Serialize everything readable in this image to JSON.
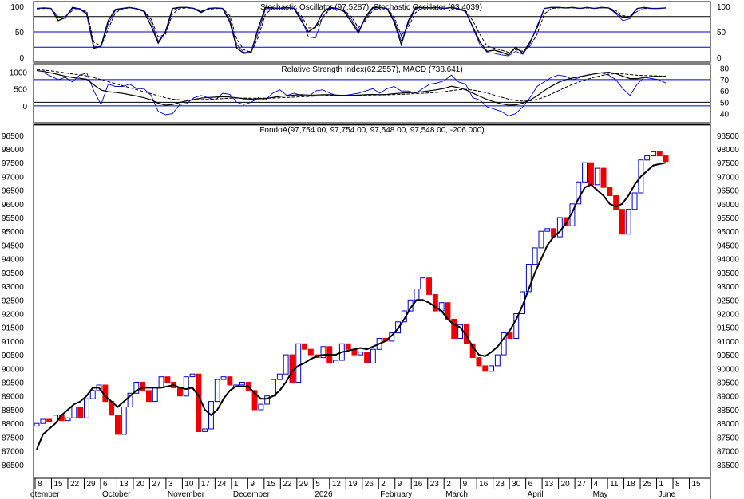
{
  "chart_data": [
    {
      "type": "line",
      "panel": "stochastic",
      "title": "Stochastic Oscillator (97.5287), Stochastic Oscillator (93.4039)",
      "ylim": [
        0,
        100
      ],
      "yticks": [
        0,
        50,
        100
      ],
      "reference_lines": [
        20,
        50,
        80
      ],
      "colors": {
        "k": "#000000",
        "d": "#000000",
        "k2": "#0000cc"
      },
      "series": [
        {
          "values": [
            96,
            97,
            96,
            72,
            78,
            98,
            95,
            85,
            18,
            22,
            72,
            94,
            96,
            98,
            95,
            90,
            62,
            28,
            50,
            96,
            98,
            98,
            96,
            88,
            96,
            97,
            96,
            70,
            18,
            8,
            10,
            58,
            98,
            97,
            96,
            98,
            96,
            72,
            50,
            60,
            88,
            98,
            96,
            90,
            70,
            48,
            80,
            98,
            98,
            96,
            70,
            25,
            72,
            98,
            98,
            97,
            98,
            96,
            98,
            95,
            90,
            60,
            30,
            12,
            14,
            10,
            5,
            20,
            8,
            30,
            58,
            96,
            98,
            98,
            97,
            98,
            96,
            98,
            96,
            98,
            97,
            88,
            78,
            80,
            96,
            98,
            96,
            96,
            97
          ]
        },
        {
          "values": [
            95,
            96,
            96,
            80,
            80,
            92,
            96,
            90,
            30,
            22,
            55,
            88,
            95,
            97,
            96,
            92,
            75,
            40,
            45,
            85,
            96,
            97,
            96,
            92,
            94,
            96,
            96,
            82,
            35,
            15,
            10,
            40,
            85,
            96,
            96,
            97,
            96,
            82,
            58,
            58,
            78,
            94,
            96,
            93,
            80,
            58,
            72,
            92,
            97,
            96,
            80,
            42,
            60,
            88,
            97,
            97,
            97,
            96,
            97,
            96,
            92,
            72,
            45,
            22,
            18,
            14,
            10,
            15,
            12,
            22,
            45,
            85,
            96,
            97,
            97,
            97,
            96,
            97,
            96,
            97,
            97,
            92,
            82,
            80,
            90,
            96,
            96,
            96,
            97
          ]
        },
        {
          "values": [
            96,
            97,
            96,
            78,
            80,
            96,
            96,
            88,
            22,
            20,
            65,
            92,
            96,
            98,
            96,
            92,
            70,
            32,
            48,
            92,
            98,
            98,
            96,
            90,
            95,
            97,
            96,
            75,
            25,
            10,
            12,
            48,
            95,
            97,
            96,
            98,
            96,
            78,
            40,
            38,
            80,
            96,
            96,
            92,
            75,
            52,
            76,
            96,
            98,
            96,
            75,
            32,
            66,
            96,
            98,
            97,
            98,
            96,
            98,
            96,
            90,
            58,
            25,
            10,
            8,
            5,
            3,
            12,
            6,
            26,
            62,
            96,
            98,
            98,
            97,
            98,
            96,
            98,
            96,
            98,
            97,
            86,
            72,
            76,
            96,
            98,
            96,
            96,
            97
          ]
        }
      ]
    },
    {
      "type": "line",
      "panel": "rsi_macd",
      "title": "Relative Strength Index(62.2557), MACD (738.641)",
      "left_yticks": [
        0,
        500,
        1000
      ],
      "right_yticks": [
        40,
        50,
        60,
        70,
        80
      ],
      "left_ylim": [
        -500,
        1250
      ],
      "right_ylim": [
        32,
        84
      ],
      "reference_lines_rsi": [
        30,
        50,
        70
      ],
      "reference_line_macd": 0,
      "colors": {
        "rsi": "#0000cc",
        "macd": "#000000",
        "signal": "#000000"
      },
      "series": [
        {
          "name": "RSI",
          "values": [
            76,
            76,
            73,
            70,
            72,
            68,
            74,
            76,
            60,
            48,
            66,
            64,
            64,
            66,
            62,
            62,
            56,
            42,
            39,
            40,
            48,
            49,
            54,
            56,
            54,
            52,
            58,
            57,
            50,
            48,
            50,
            54,
            52,
            58,
            61,
            56,
            58,
            56,
            55,
            60,
            61,
            58,
            56,
            56,
            57,
            58,
            60,
            62,
            58,
            62,
            64,
            60,
            60,
            58,
            62,
            66,
            67,
            69,
            74,
            68,
            66,
            54,
            52,
            46,
            44,
            42,
            38,
            40,
            46,
            54,
            64,
            68,
            72,
            74,
            73,
            70,
            72,
            74,
            75,
            76,
            74,
            70,
            62,
            56,
            66,
            72,
            71,
            70,
            67
          ]
        },
        {
          "name": "MACD",
          "values": [
            1050,
            1020,
            980,
            930,
            880,
            840,
            820,
            790,
            620,
            470,
            420,
            400,
            370,
            330,
            290,
            240,
            180,
            80,
            20,
            40,
            100,
            150,
            190,
            230,
            250,
            260,
            270,
            265,
            240,
            210,
            200,
            210,
            220,
            250,
            280,
            300,
            320,
            330,
            320,
            320,
            330,
            330,
            320,
            310,
            310,
            320,
            330,
            340,
            330,
            340,
            360,
            380,
            390,
            400,
            420,
            450,
            480,
            520,
            580,
            540,
            480,
            380,
            280,
            190,
            120,
            60,
            20,
            30,
            80,
            170,
            300,
            450,
            580,
            700,
            780,
            830,
            870,
            910,
            950,
            980,
            1000,
            960,
            880,
            810,
            810,
            840,
            870,
            880,
            860
          ]
        },
        {
          "name": "Signal",
          "values": [
            1080,
            1060,
            1040,
            1010,
            980,
            950,
            920,
            890,
            840,
            780,
            720,
            660,
            600,
            540,
            480,
            420,
            360,
            300,
            240,
            200,
            180,
            170,
            175,
            185,
            195,
            205,
            215,
            225,
            230,
            230,
            228,
            225,
            225,
            230,
            240,
            250,
            260,
            270,
            280,
            290,
            300,
            305,
            308,
            310,
            312,
            315,
            318,
            322,
            325,
            328,
            335,
            343,
            352,
            362,
            372,
            385,
            400,
            420,
            450,
            480,
            490,
            470,
            430,
            380,
            320,
            260,
            200,
            160,
            140,
            150,
            190,
            260,
            350,
            450,
            550,
            640,
            720,
            790,
            850,
            900,
            940,
            960,
            950,
            930,
            910,
            900,
            895,
            890,
            880
          ]
        }
      ]
    },
    {
      "type": "candlestick",
      "panel": "price",
      "title": "FondoA(97,754.00, 97,754.00, 97,548.00, 97,548.00, -206.000)",
      "ylim": [
        86000,
        98900
      ],
      "yticks": [
        86500,
        87000,
        87500,
        88000,
        88500,
        89000,
        89500,
        90000,
        90500,
        91000,
        91500,
        92000,
        92500,
        93000,
        93500,
        94000,
        94500,
        95000,
        95500,
        96000,
        96500,
        97000,
        97500,
        98000,
        98500
      ],
      "colors": {
        "up": "#0000cc",
        "down": "#ee0000",
        "ma": "#000000"
      },
      "closes": [
        88000,
        88150,
        88050,
        88300,
        88100,
        88200,
        88600,
        88200,
        88900,
        89200,
        89400,
        88800,
        88300,
        87600,
        88600,
        89100,
        89500,
        89200,
        88800,
        89300,
        89700,
        89500,
        89300,
        89000,
        89700,
        89800,
        87700,
        87800,
        88800,
        89600,
        89700,
        89400,
        89400,
        89500,
        89200,
        88500,
        88700,
        89000,
        89600,
        89800,
        90500,
        89500,
        90900,
        90700,
        90500,
        90400,
        90800,
        90200,
        90300,
        90900,
        90700,
        90500,
        90600,
        90200,
        90700,
        91100,
        91000,
        91300,
        91700,
        92100,
        92500,
        92900,
        93300,
        92700,
        92100,
        92400,
        91800,
        91100,
        91600,
        90900,
        90400,
        90100,
        89900,
        90100,
        90500,
        91300,
        91100,
        92000,
        92800,
        93800,
        94400,
        95000,
        95100,
        94800,
        95500,
        95200,
        96000,
        96800,
        97500,
        96700,
        97300,
        96600,
        96300,
        95800,
        94900,
        95800,
        96400,
        97600,
        97750,
        97900,
        97750,
        97548
      ],
      "ma": [
        87050,
        87600,
        87800,
        88000,
        88300,
        88500,
        88700,
        88800,
        89000,
        89300,
        89300,
        89000,
        88800,
        88600,
        88800,
        89000,
        89200,
        89300,
        89300,
        89300,
        89300,
        89350,
        89400,
        89300,
        89250,
        89300,
        89000,
        88500,
        88300,
        88500,
        88900,
        89200,
        89350,
        89350,
        89350,
        89100,
        88900,
        88900,
        89000,
        89200,
        89500,
        89900,
        90100,
        90200,
        90350,
        90450,
        90500,
        90500,
        90500,
        90600,
        90650,
        90700,
        90750,
        90700,
        90800,
        90900,
        91000,
        91200,
        91450,
        91800,
        92200,
        92500,
        92500,
        92400,
        92250,
        92100,
        91800,
        91600,
        91500,
        91200,
        90800,
        90500,
        90450,
        90600,
        90800,
        91100,
        91400,
        91800,
        92300,
        92900,
        93500,
        94000,
        94500,
        94800,
        95000,
        95300,
        95700,
        96200,
        96600,
        96700,
        96500,
        96300,
        96000,
        95900,
        96000,
        96300,
        96700,
        97000,
        97200,
        97400,
        97450,
        97500
      ],
      "x_tick_labels": [
        "8",
        "15",
        "22",
        "29",
        "6",
        "13",
        "20",
        "27",
        "3",
        "10",
        "17",
        "24",
        "1",
        "9",
        "15",
        "22",
        "29",
        "5",
        "12",
        "19",
        "26",
        "2",
        "9",
        "16",
        "23",
        "2",
        "9",
        "16",
        "23",
        "30",
        "6",
        "13",
        "20",
        "27",
        "4",
        "11",
        "18",
        "25",
        "1",
        "8",
        "15"
      ],
      "month_labels": [
        "otember",
        "October",
        "November",
        "December",
        "2026",
        "February",
        "March",
        "April",
        "May",
        "June"
      ]
    }
  ]
}
